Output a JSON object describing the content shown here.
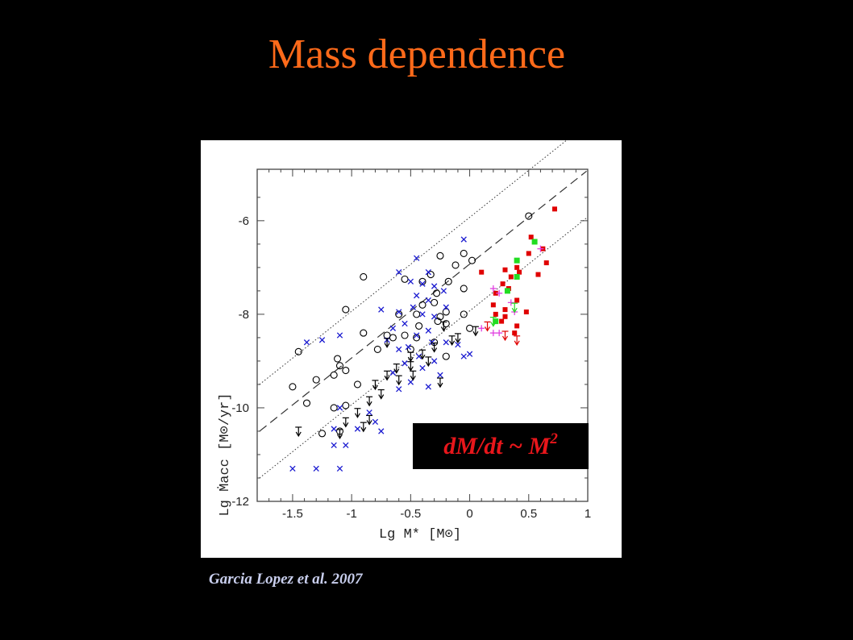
{
  "slide": {
    "title": "Mass dependence",
    "formula_main": "dM/dt ~ M",
    "formula_exp": "2",
    "citation": "Garcia Lopez et al. 2007"
  },
  "chart_data": {
    "type": "scatter",
    "title": "",
    "xlabel": "Lg M* [M⊙]",
    "ylabel": "Lg Ṁacc [M⊙/yr]",
    "xlim": [
      -1.8,
      1.0
    ],
    "ylim": [
      -12.0,
      -4.9
    ],
    "x_ticks": [
      "-1.5",
      "-1",
      "-0.5",
      "0",
      "0.5",
      "1"
    ],
    "x_tick_values": [
      -1.5,
      -1,
      -0.5,
      0,
      0.5,
      1
    ],
    "y_ticks": [
      "-6",
      "-8",
      "-10",
      "-12"
    ],
    "y_tick_values": [
      -6,
      -8,
      -10,
      -12
    ],
    "grid": false,
    "colors": {
      "open_circles": "#000000",
      "crosses": "#1a1ad0",
      "upper_limits": "#000000",
      "red_squares": "#e00000",
      "green_squares": "#22dd22",
      "magenta_plus": "#e040e0",
      "red_limits": "#e00000",
      "green_limits": "#22dd22"
    },
    "lines": [
      {
        "style": "dashed",
        "points": [
          [
            -1.78,
            -10.5
          ],
          [
            0.99,
            -4.94
          ]
        ]
      },
      {
        "style": "dotted",
        "points": [
          [
            -1.78,
            -9.5
          ],
          [
            0.99,
            -3.94
          ]
        ]
      },
      {
        "style": "dotted",
        "points": [
          [
            -1.78,
            -11.5
          ],
          [
            0.99,
            -5.94
          ]
        ]
      }
    ],
    "series": [
      {
        "marker": "open_circle",
        "points": [
          [
            0.5,
            -5.9
          ],
          [
            -0.25,
            -6.75
          ],
          [
            -0.05,
            -6.7
          ],
          [
            0.02,
            -6.85
          ],
          [
            -0.12,
            -6.95
          ],
          [
            -0.33,
            -7.15
          ],
          [
            -0.9,
            -7.2
          ],
          [
            -0.18,
            -7.3
          ],
          [
            -0.55,
            -7.25
          ],
          [
            -0.4,
            -7.3
          ],
          [
            -0.28,
            -7.55
          ],
          [
            -0.05,
            -7.45
          ],
          [
            -0.3,
            -7.75
          ],
          [
            -0.4,
            -7.8
          ],
          [
            -0.2,
            -7.95
          ],
          [
            -0.45,
            -8.0
          ],
          [
            -1.05,
            -7.9
          ],
          [
            -0.25,
            -8.05
          ],
          [
            -0.6,
            -8.0
          ],
          [
            -0.05,
            -8.0
          ],
          [
            -0.27,
            -8.15
          ],
          [
            -0.2,
            -8.2
          ],
          [
            -0.43,
            -8.25
          ],
          [
            -0.55,
            -8.45
          ],
          [
            -0.7,
            -8.45
          ],
          [
            -0.65,
            -8.5
          ],
          [
            -0.45,
            -8.5
          ],
          [
            -0.9,
            -8.4
          ],
          [
            -1.12,
            -8.95
          ],
          [
            -1.45,
            -8.8
          ],
          [
            -0.78,
            -8.75
          ],
          [
            -0.2,
            -8.9
          ],
          [
            -0.3,
            -8.6
          ],
          [
            -0.5,
            -8.75
          ],
          [
            -1.1,
            -9.1
          ],
          [
            -1.05,
            -9.2
          ],
          [
            -1.15,
            -9.3
          ],
          [
            -0.95,
            -9.5
          ],
          [
            -1.3,
            -9.4
          ],
          [
            -1.5,
            -9.55
          ],
          [
            -1.38,
            -9.9
          ],
          [
            -1.05,
            -9.95
          ],
          [
            -1.15,
            -10.0
          ],
          [
            -1.1,
            -10.5
          ],
          [
            -1.25,
            -10.55
          ],
          [
            0.0,
            -8.3
          ]
        ]
      },
      {
        "marker": "cross",
        "points": [
          [
            -0.05,
            -6.4
          ],
          [
            -0.45,
            -6.8
          ],
          [
            -0.35,
            -7.1
          ],
          [
            -0.6,
            -7.1
          ],
          [
            -0.5,
            -7.3
          ],
          [
            -0.4,
            -7.35
          ],
          [
            -0.3,
            -7.4
          ],
          [
            -0.22,
            -7.5
          ],
          [
            -0.45,
            -7.6
          ],
          [
            -0.35,
            -7.7
          ],
          [
            -0.48,
            -7.85
          ],
          [
            -0.2,
            -7.85
          ],
          [
            -0.6,
            -7.95
          ],
          [
            -0.75,
            -7.9
          ],
          [
            -0.3,
            -8.05
          ],
          [
            -0.4,
            -8.0
          ],
          [
            -0.55,
            -8.2
          ],
          [
            -0.65,
            -8.3
          ],
          [
            -0.35,
            -8.35
          ],
          [
            -0.45,
            -8.45
          ],
          [
            -0.7,
            -8.55
          ],
          [
            -0.32,
            -8.6
          ],
          [
            -0.52,
            -8.7
          ],
          [
            -0.1,
            -8.65
          ],
          [
            -0.6,
            -8.75
          ],
          [
            -0.43,
            -8.9
          ],
          [
            -0.3,
            -9.0
          ],
          [
            -0.55,
            -9.05
          ],
          [
            -0.4,
            -9.15
          ],
          [
            -0.65,
            -9.25
          ],
          [
            -0.25,
            -9.3
          ],
          [
            -0.5,
            -9.45
          ],
          [
            -0.35,
            -9.55
          ],
          [
            -0.6,
            -9.6
          ],
          [
            -1.1,
            -10.0
          ],
          [
            -1.15,
            -10.45
          ],
          [
            -0.85,
            -10.1
          ],
          [
            -0.8,
            -10.3
          ],
          [
            -0.95,
            -10.45
          ],
          [
            -0.75,
            -10.5
          ],
          [
            -1.05,
            -10.8
          ],
          [
            -1.15,
            -10.8
          ],
          [
            -1.5,
            -11.3
          ],
          [
            -1.3,
            -11.3
          ],
          [
            -1.1,
            -11.3
          ],
          [
            -1.25,
            -8.55
          ],
          [
            -1.38,
            -8.6
          ],
          [
            -1.1,
            -8.45
          ],
          [
            0.0,
            -8.85
          ],
          [
            -0.05,
            -8.9
          ],
          [
            -0.2,
            -8.6
          ]
        ]
      },
      {
        "marker": "upper_limit_black",
        "points": [
          [
            -0.1,
            -8.5
          ],
          [
            0.05,
            -8.35
          ],
          [
            -0.15,
            -8.55
          ],
          [
            -0.3,
            -8.7
          ],
          [
            -0.4,
            -8.85
          ],
          [
            -0.5,
            -9.1
          ],
          [
            -0.62,
            -9.15
          ],
          [
            -0.7,
            -9.3
          ],
          [
            -0.6,
            -9.4
          ],
          [
            -0.48,
            -9.3
          ],
          [
            -0.25,
            -9.45
          ],
          [
            -0.8,
            -9.5
          ],
          [
            -0.75,
            -9.7
          ],
          [
            -0.85,
            -9.85
          ],
          [
            -0.95,
            -10.1
          ],
          [
            -0.85,
            -10.25
          ],
          [
            -0.9,
            -10.4
          ],
          [
            -1.05,
            -10.3
          ],
          [
            -1.1,
            -10.55
          ],
          [
            -1.45,
            -10.5
          ],
          [
            -0.7,
            -8.6
          ],
          [
            -0.35,
            -9.0
          ],
          [
            -0.22,
            -8.25
          ],
          [
            -0.5,
            -8.9
          ]
        ]
      },
      {
        "marker": "square_red",
        "points": [
          [
            0.72,
            -5.75
          ],
          [
            0.52,
            -6.35
          ],
          [
            0.62,
            -6.6
          ],
          [
            0.5,
            -6.7
          ],
          [
            0.65,
            -6.9
          ],
          [
            0.4,
            -7.0
          ],
          [
            0.42,
            -7.1
          ],
          [
            0.3,
            -7.05
          ],
          [
            0.1,
            -7.1
          ],
          [
            0.35,
            -7.2
          ],
          [
            0.58,
            -7.15
          ],
          [
            0.28,
            -7.35
          ],
          [
            0.33,
            -7.45
          ],
          [
            0.22,
            -7.55
          ],
          [
            0.4,
            -7.7
          ],
          [
            0.2,
            -7.8
          ],
          [
            0.3,
            -7.9
          ],
          [
            0.22,
            -8.0
          ],
          [
            0.3,
            -8.05
          ],
          [
            0.48,
            -7.95
          ],
          [
            0.27,
            -8.15
          ],
          [
            0.4,
            -8.25
          ],
          [
            0.38,
            -8.4
          ]
        ]
      },
      {
        "marker": "square_green",
        "points": [
          [
            0.55,
            -6.45
          ],
          [
            0.4,
            -6.85
          ],
          [
            0.4,
            -7.2
          ],
          [
            0.32,
            -7.5
          ],
          [
            0.22,
            -8.15
          ]
        ]
      },
      {
        "marker": "plus_magenta",
        "points": [
          [
            0.6,
            -6.6
          ],
          [
            0.2,
            -7.45
          ],
          [
            0.25,
            -7.55
          ],
          [
            0.35,
            -7.75
          ],
          [
            0.38,
            -7.95
          ],
          [
            0.1,
            -8.3
          ],
          [
            0.2,
            -8.4
          ],
          [
            0.25,
            -8.4
          ]
        ]
      },
      {
        "marker": "upper_limit_red",
        "points": [
          [
            0.4,
            -8.55
          ],
          [
            0.15,
            -8.25
          ],
          [
            0.3,
            -8.45
          ]
        ]
      },
      {
        "marker": "upper_limit_green",
        "points": [
          [
            0.38,
            -7.85
          ],
          [
            0.2,
            -8.15
          ]
        ]
      }
    ]
  }
}
